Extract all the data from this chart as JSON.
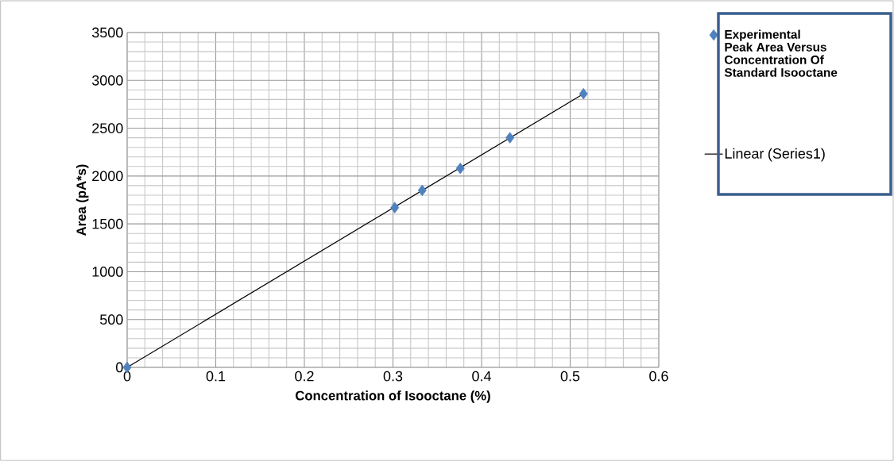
{
  "chart_data": {
    "type": "scatter",
    "xlabel": "Concentration of Isooctane (%)",
    "ylabel": "Area (pA*s)",
    "series": [
      {
        "name": "Experimental Peak Area Versus Concentration Of Standard Isooctane",
        "color": "#4f81bd",
        "marker": "diamond",
        "x": [
          0,
          0.302,
          0.333,
          0.376,
          0.432,
          0.515
        ],
        "values": [
          0,
          1670,
          1850,
          2080,
          2400,
          2860
        ]
      },
      {
        "name": "Linear (Series1)",
        "type": "line",
        "color": "#000000",
        "line_style": "solid",
        "x": [
          0,
          0.515
        ],
        "values": [
          0,
          2860
        ]
      }
    ],
    "xlim": [
      0,
      0.6
    ],
    "xticks": [
      0,
      0.1,
      0.2,
      0.3,
      0.4,
      0.5,
      0.6
    ],
    "ylim": [
      0,
      3500
    ],
    "yticks": [
      0,
      500,
      1000,
      1500,
      2000,
      2500,
      3000,
      3500
    ],
    "grid": true,
    "legend": "right"
  }
}
